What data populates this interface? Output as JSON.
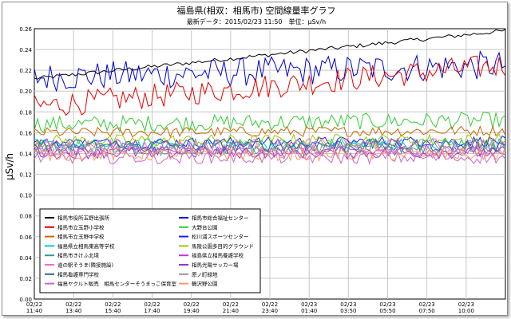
{
  "chart_data": {
    "type": "line",
    "title": "福島県(相双：相馬市) 空間線量率グラフ",
    "subtitle": "最新データ：2015/02/23 11:50　単位：μSv/h",
    "ylabel": "μSv/h",
    "xlabel": "",
    "ylim": [
      0,
      0.26
    ],
    "yticks": [
      "0.00",
      "0.02",
      "0.04",
      "0.06",
      "0.08",
      "0.10",
      "0.12",
      "0.14",
      "0.16",
      "0.18",
      "0.20",
      "0.22",
      "0.24",
      "0.26"
    ],
    "x_tick_labels": [
      {
        "date": "02/22",
        "time": "11:40"
      },
      {
        "date": "02/22",
        "time": "13:40"
      },
      {
        "date": "02/22",
        "time": "15:40"
      },
      {
        "date": "02/22",
        "time": "17:40"
      },
      {
        "date": "02/22",
        "time": "19:40"
      },
      {
        "date": "02/22",
        "time": "21:40"
      },
      {
        "date": "02/22",
        "time": "23:40"
      },
      {
        "date": "02/23",
        "time": "01:40"
      },
      {
        "date": "02/23",
        "time": "03:50"
      },
      {
        "date": "02/23",
        "time": "05:50"
      },
      {
        "date": "02/23",
        "time": "07:50"
      },
      {
        "date": "02/23",
        "time": "10:00"
      }
    ],
    "grid": true,
    "legend_position": "bottom-left",
    "series": [
      {
        "name": "相馬市役所玉野出張所",
        "color": "#000000",
        "start": 0.212,
        "end": 0.258,
        "noise": 0.002
      },
      {
        "name": "相馬市総合福祉センター",
        "color": "#0000cc",
        "start": 0.213,
        "end": 0.225,
        "noise": 0.014
      },
      {
        "name": "相馬市立玉野小学校",
        "color": "#e60000",
        "start": 0.185,
        "end": 0.225,
        "noise": 0.012
      },
      {
        "name": "大野台公園",
        "color": "#33cc33",
        "start": 0.168,
        "end": 0.172,
        "noise": 0.008
      },
      {
        "name": "相馬市立玉野中学校",
        "color": "#cc6600",
        "start": 0.16,
        "end": 0.162,
        "noise": 0.005
      },
      {
        "name": "松川浦スポーツセンター",
        "color": "#1a1aff",
        "start": 0.15,
        "end": 0.152,
        "noise": 0.005
      },
      {
        "name": "福島県立相馬東高等学校",
        "color": "#00cccc",
        "start": 0.148,
        "end": 0.149,
        "noise": 0.006
      },
      {
        "name": "馬陵公園多目的グラウンド",
        "color": "#99cc00",
        "start": 0.152,
        "end": 0.153,
        "noise": 0.006
      },
      {
        "name": "相馬市きけふ北境",
        "color": "#339999",
        "start": 0.145,
        "end": 0.146,
        "noise": 0.006
      },
      {
        "name": "福島県立相馬養護学校",
        "color": "#cc33cc",
        "start": 0.142,
        "end": 0.142,
        "noise": 0.005
      },
      {
        "name": "道の駅そうま(隣接施設)",
        "color": "#ff66cc",
        "start": 0.147,
        "end": 0.148,
        "noise": 0.007
      },
      {
        "name": "相馬光陽サッカー場",
        "color": "#9933cc",
        "start": 0.141,
        "end": 0.141,
        "noise": 0.006
      },
      {
        "name": "相馬看護専門学校",
        "color": "#336699",
        "start": 0.148,
        "end": 0.148,
        "noise": 0.006
      },
      {
        "name": "原ノ町緑地",
        "color": "#999999",
        "start": 0.144,
        "end": 0.144,
        "noise": 0.006
      },
      {
        "name": "福島ヤクルト販売　相馬センターそうまっこ保育室",
        "color": "#cc66cc",
        "start": 0.136,
        "end": 0.136,
        "noise": 0.006
      },
      {
        "name": "鶴沢野公園",
        "color": "#ff9966",
        "start": 0.139,
        "end": 0.139,
        "noise": 0.006
      }
    ]
  }
}
